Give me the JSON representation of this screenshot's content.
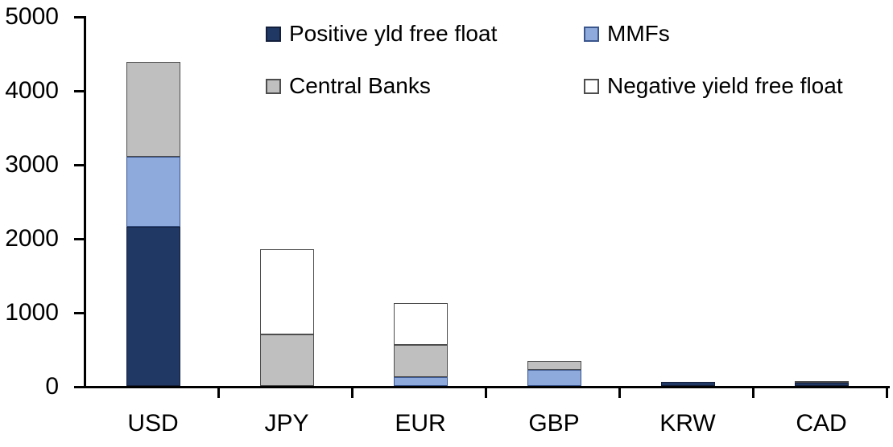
{
  "chart_data": {
    "type": "bar",
    "stacked": true,
    "title": "",
    "xlabel": "",
    "ylabel": "",
    "categories": [
      "USD",
      "JPY",
      "EUR",
      "GBP",
      "KRW",
      "CAD"
    ],
    "series": [
      {
        "name": "Positive yld free float",
        "color": "#1F3864",
        "border": "#141F3C",
        "values": [
          2150,
          0,
          0,
          0,
          50,
          40
        ]
      },
      {
        "name": "MMFs",
        "color": "#8EA9DB",
        "border": "#3A568C",
        "values": [
          950,
          0,
          120,
          220,
          0,
          0
        ]
      },
      {
        "name": "Central Banks",
        "color": "#BFBFBF",
        "border": "#4D4D4D",
        "values": [
          1280,
          700,
          430,
          120,
          0,
          30
        ]
      },
      {
        "name": "Negative yield free float",
        "color": "#FFFFFF",
        "border": "#4D4D4D",
        "values": [
          0,
          1150,
          570,
          0,
          0,
          0
        ]
      }
    ],
    "totals": {
      "USD": 4380,
      "JPY": 1850,
      "EUR": 1120,
      "GBP": 340,
      "KRW": 50,
      "CAD": 70
    },
    "ylim": [
      0,
      5000
    ],
    "yticks": [
      0,
      1000,
      2000,
      3000,
      4000,
      5000
    ],
    "grid": false,
    "legend_position": "top",
    "legend_columns": 2,
    "axis_color": "#000000"
  }
}
